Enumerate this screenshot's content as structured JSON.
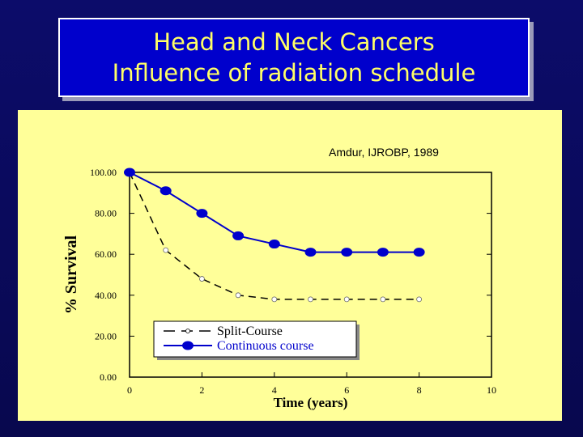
{
  "slide": {
    "title_line1": "Head and Neck Cancers",
    "title_line2": "Influence of radiation schedule",
    "citation": "Amdur, IJROBP, 1989"
  },
  "colors": {
    "background": "#0a0a5e",
    "title_box": "#0000cc",
    "title_text": "#ffff66",
    "chart_panel": "#ffff99",
    "continuous_series": "#0000cc",
    "split_series": "#000000",
    "legend_continuous_text": "#0000cc",
    "legend_split_text": "#000000"
  },
  "chart_data": {
    "type": "line",
    "xlabel": "Time (years)",
    "ylabel": "% Survival",
    "xlim": [
      0,
      10
    ],
    "ylim": [
      0,
      100
    ],
    "x_ticks": [
      "0",
      "2",
      "4",
      "6",
      "8",
      "10"
    ],
    "y_ticks": [
      "0.00",
      "20.00",
      "40.00",
      "60.00",
      "80.00",
      "100.00"
    ],
    "legend_position": "bottom-left",
    "grid": false,
    "series": [
      {
        "name": "Split-Course",
        "style": "dashed",
        "marker": "small-open",
        "x": [
          0,
          1,
          2,
          3,
          4,
          5,
          6,
          7,
          8
        ],
        "y": [
          100,
          62,
          48,
          40,
          38,
          38,
          38,
          38,
          38
        ]
      },
      {
        "name": "Continuous course",
        "style": "solid",
        "marker": "filled-circle",
        "x": [
          0,
          1,
          2,
          3,
          4,
          5,
          6,
          7,
          8
        ],
        "y": [
          100,
          91,
          80,
          69,
          65,
          61,
          61,
          61,
          61
        ]
      }
    ]
  }
}
